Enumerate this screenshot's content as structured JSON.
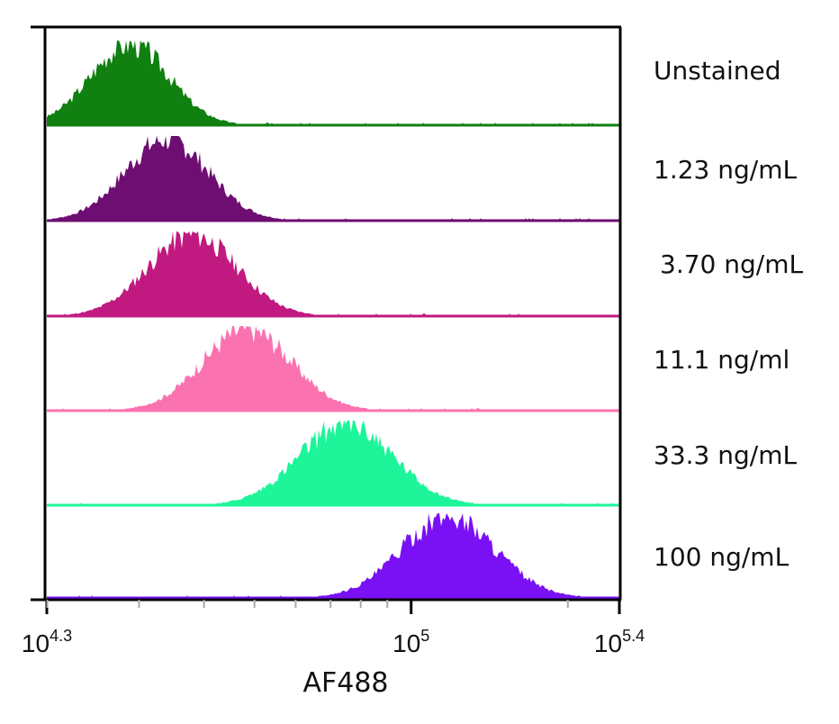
{
  "chart_data": {
    "type": "area",
    "xlabel": "AF488",
    "xscale": "log",
    "xlim": [
      19953,
      251189
    ],
    "x_ticks": [
      {
        "value": 19953,
        "base": "10",
        "exp": "4.3"
      },
      {
        "value": 100000,
        "base": "10",
        "exp": "5"
      },
      {
        "value": 251189,
        "base": "10",
        "exp": "5.4"
      }
    ],
    "grid": false,
    "legend": "row labels at right",
    "series": [
      {
        "name": "Unstained",
        "color": "#108010",
        "peak_x": 28800,
        "spread": 0.075,
        "seed": 3
      },
      {
        "name": "1.23 ng/mL",
        "color": "#6e0d72",
        "peak_x": 33900,
        "spread": 0.08,
        "seed": 7
      },
      {
        "name": "3.70 ng/mL",
        "color": "#c01a80",
        "peak_x": 38000,
        "spread": 0.085,
        "seed": 11
      },
      {
        "name": "11.1 ng/ml",
        "color": "#fb72b0",
        "peak_x": 48400,
        "spread": 0.085,
        "seed": 17
      },
      {
        "name": "33.3 ng/mL",
        "color": "#1ef59a",
        "peak_x": 75000,
        "spread": 0.09,
        "seed": 23
      },
      {
        "name": "100 ng/mL",
        "color": "#7a10f4",
        "peak_x": 118000,
        "spread": 0.09,
        "seed": 29
      }
    ]
  }
}
